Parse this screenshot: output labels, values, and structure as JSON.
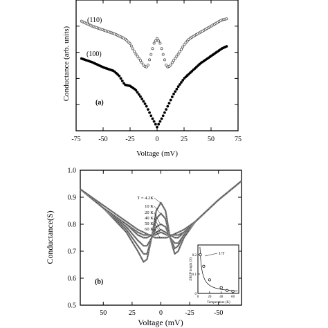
{
  "chart_data": [
    {
      "type": "scatter",
      "panel_label": "(a)",
      "xlabel": "Voltage (mV)",
      "ylabel": "Conductance (arb. units)",
      "xlim": [
        -75,
        75
      ],
      "x_ticks": [
        "-75",
        "-50",
        "-25",
        "0",
        "25",
        "50",
        "75"
      ],
      "ylim": [
        0,
        1.05
      ],
      "grid": false,
      "series": [
        {
          "name": "(110)",
          "marker": "open-circle",
          "color": "#555555",
          "x": [
            -70,
            -60,
            -50,
            -40,
            -30,
            -25,
            -20,
            -15,
            -12,
            -9,
            -6,
            -3,
            0,
            3,
            6,
            9,
            12,
            15,
            20,
            25,
            30,
            40,
            50,
            60,
            65
          ],
          "y": [
            0.88,
            0.84,
            0.81,
            0.78,
            0.74,
            0.7,
            0.62,
            0.56,
            0.52,
            0.51,
            0.6,
            0.7,
            0.74,
            0.7,
            0.6,
            0.51,
            0.52,
            0.56,
            0.62,
            0.69,
            0.74,
            0.79,
            0.84,
            0.89,
            0.9
          ]
        },
        {
          "name": "(100)",
          "marker": "filled-circle",
          "color": "#000000",
          "x": [
            -70,
            -60,
            -50,
            -40,
            -35,
            -30,
            -25,
            -20,
            -15,
            -10,
            -5,
            0,
            5,
            10,
            15,
            20,
            25,
            30,
            40,
            50,
            60,
            65
          ],
          "y": [
            0.58,
            0.55,
            0.51,
            0.48,
            0.44,
            0.37,
            0.36,
            0.33,
            0.27,
            0.2,
            0.11,
            0.03,
            0.11,
            0.2,
            0.29,
            0.36,
            0.42,
            0.46,
            0.54,
            0.6,
            0.66,
            0.68
          ]
        }
      ]
    },
    {
      "type": "scatter",
      "panel_label": "(b)",
      "xlabel": "Voltage (mV)",
      "ylabel": "Conductance(S)",
      "xlim": [
        70,
        -70
      ],
      "x_ticks": [
        "50",
        "25",
        "0",
        "-25",
        "-50"
      ],
      "ylim": [
        0.5,
        1.0
      ],
      "y_ticks": [
        "0.5",
        "0.6",
        "0.7",
        "0.8",
        "0.9",
        "1.0"
      ],
      "grid": false,
      "temperature_labels": [
        "T = 4.2K",
        "10 K",
        "20 K",
        "40 K",
        "50 K",
        "60 K"
      ],
      "series": [
        {
          "name": "T = 4.2K",
          "x": [
            70,
            50,
            30,
            20,
            15,
            12,
            8,
            4,
            0,
            -4,
            -8,
            -12,
            -15,
            -20,
            -30,
            -50,
            -70
          ],
          "y": [
            0.93,
            0.86,
            0.77,
            0.7,
            0.66,
            0.67,
            0.75,
            0.85,
            0.88,
            0.85,
            0.75,
            0.69,
            0.7,
            0.75,
            0.81,
            0.89,
            0.96
          ]
        },
        {
          "name": "10 K",
          "x": [
            70,
            50,
            30,
            20,
            15,
            12,
            8,
            4,
            0,
            -4,
            -8,
            -12,
            -15,
            -20,
            -30,
            -50,
            -70
          ],
          "y": [
            0.93,
            0.86,
            0.78,
            0.72,
            0.69,
            0.69,
            0.75,
            0.82,
            0.84,
            0.82,
            0.75,
            0.71,
            0.72,
            0.76,
            0.81,
            0.89,
            0.96
          ]
        },
        {
          "name": "20 K",
          "x": [
            70,
            50,
            30,
            20,
            15,
            12,
            8,
            4,
            0,
            -4,
            -8,
            -12,
            -15,
            -20,
            -30,
            -50,
            -70
          ],
          "y": [
            0.93,
            0.86,
            0.79,
            0.74,
            0.72,
            0.72,
            0.75,
            0.79,
            0.8,
            0.79,
            0.75,
            0.73,
            0.73,
            0.76,
            0.81,
            0.89,
            0.96
          ]
        },
        {
          "name": "40 K",
          "x": [
            70,
            50,
            30,
            20,
            15,
            12,
            8,
            4,
            0,
            -4,
            -8,
            -12,
            -15,
            -20,
            -30,
            -50,
            -70
          ],
          "y": [
            0.93,
            0.86,
            0.8,
            0.76,
            0.75,
            0.75,
            0.76,
            0.77,
            0.78,
            0.77,
            0.76,
            0.75,
            0.75,
            0.77,
            0.81,
            0.89,
            0.96
          ]
        },
        {
          "name": "50 K",
          "x": [
            70,
            50,
            30,
            20,
            15,
            10,
            5,
            0,
            -5,
            -10,
            -15,
            -20,
            -30,
            -50,
            -70
          ],
          "y": [
            0.93,
            0.86,
            0.8,
            0.77,
            0.76,
            0.76,
            0.76,
            0.77,
            0.76,
            0.76,
            0.76,
            0.77,
            0.81,
            0.89,
            0.96
          ]
        },
        {
          "name": "60 K",
          "x": [
            70,
            50,
            30,
            20,
            15,
            10,
            5,
            0,
            -5,
            -10,
            -15,
            -20,
            -30,
            -50,
            -70
          ],
          "y": [
            0.93,
            0.87,
            0.81,
            0.78,
            0.77,
            0.76,
            0.75,
            0.75,
            0.75,
            0.76,
            0.77,
            0.78,
            0.81,
            0.89,
            0.96
          ]
        }
      ],
      "inset": {
        "xlabel": "Temperature (K)",
        "ylabel": "ZBCP height (S)",
        "x_ticks": [
          "0",
          "20",
          "40",
          "60"
        ],
        "y_ticks": [
          "0",
          "0.1",
          "0.2"
        ],
        "annotation": "1/T",
        "xlim": [
          0,
          70
        ],
        "ylim": [
          0,
          0.25
        ],
        "points_x": [
          4.2,
          10,
          20,
          40,
          50,
          60
        ],
        "points_y": [
          0.2,
          0.14,
          0.07,
          0.03,
          0.015,
          0.01
        ]
      }
    }
  ]
}
